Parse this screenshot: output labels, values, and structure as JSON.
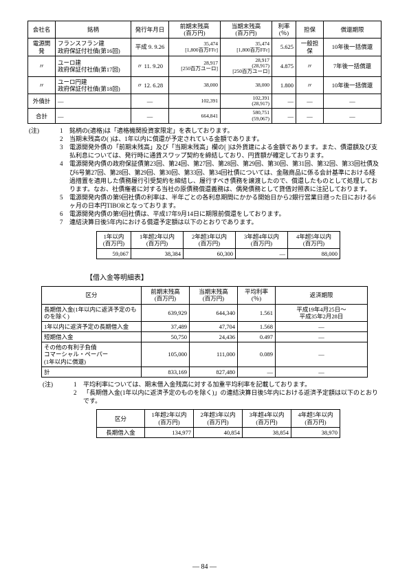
{
  "table1": {
    "headers": [
      "会社名",
      "銘柄",
      "発行年月日",
      "前期末残高\n(百万円)",
      "当期末残高\n(百万円)",
      "利率\n(％)",
      "担保",
      "償還期限"
    ],
    "rows": [
      {
        "c": [
          "電源開発",
          "フランスフラン建\n政府保証付社債(第16回)",
          "平成 9. 9.26",
          "35,474\n[1,800百万FFr]",
          "35,474\n[1,800百万FFr]",
          "5.625",
          "一般担保",
          "10年後一括償還"
        ]
      },
      {
        "c": [
          "〃",
          "ユーロ建\n政府保証付社債(第17回)",
          "〃 11. 9.20",
          "28,917\n[250百万ユーロ]",
          "28,917\n(28,917)\n[250百万ユーロ]",
          "4.875",
          "〃",
          "7年後一括償還"
        ]
      },
      {
        "c": [
          "〃",
          "ユーロ円建\n政府保証付社債(第18回)",
          "〃 12. 6.28",
          "38,000",
          "38,000",
          "1.800",
          "〃",
          "10年後一括償還"
        ]
      },
      {
        "c": [
          "外債計",
          "―",
          "―",
          "102,391",
          "102,391\n(28,917)",
          "―",
          "―",
          "―"
        ]
      },
      {
        "c": [
          "合計",
          "―",
          "―",
          "664,841",
          "580,751\n(59,067)",
          "―",
          "―",
          "―"
        ]
      }
    ]
  },
  "notes1": {
    "label": "(注)",
    "items": [
      {
        "n": "1",
        "t": "銘柄の(適格)は「適格機関投資家限定」を表しております。"
      },
      {
        "n": "2",
        "t": "当期末残高の( )は、1年以内に償還が予定されている金額であります。"
      },
      {
        "n": "3",
        "t": "電源開発外債の「前期末残高」及び「当期末残高」欄の[ ]は外貨建による金額であります。また、債還額及び支払利息については、発行時に通貨スワップ契約を締結しており、円貨額が確定しております。"
      },
      {
        "n": "4",
        "t": "電源開発内債の政府保証債第23回、第24回、第27回、第28回、第29回、第30回、第31回、第32回、第33回社債及び6号第27回、第28回、第29回、第30回、第33回、第34回社債については、金融商品に係る会計基準における経過措置を適用した債務履行引受契約を締結し、履行すべき債務を譲渡したので、償還したものとして処理しております。なお、社債権者に対する当社の原債務償還義務は、偶発債務として貸借対照表に注記しております。"
      },
      {
        "n": "5",
        "t": "電源開発内債の第9回社債の利率は、半年ごとの各利息期間にかかる開始日から2銀行営業日遡った日における6ヶ月の日本円TIBORとなっております。"
      },
      {
        "n": "6",
        "t": "電源開発内債の第9回社債は、平成17年9月14日に期限前償還をしております。"
      },
      {
        "n": "7",
        "t": "連結決算日後5年内における償還予定額は以下のとおりであります。"
      }
    ]
  },
  "table2": {
    "headers": [
      "1年以内\n(百万円)",
      "1年超2年以内\n(百万円)",
      "2年超3年以内\n(百万円)",
      "3年超4年以内\n(百万円)",
      "4年超5年以内\n(百万円)"
    ],
    "row": [
      "59,067",
      "38,384",
      "60,300",
      "―",
      "88,000"
    ]
  },
  "section_title": "【借入金等明細表】",
  "table3": {
    "headers": [
      "区分",
      "前期末残高\n(百万円)",
      "当期末残高\n(百万円)",
      "平均利率\n(％)",
      "返済期限"
    ],
    "rows": [
      [
        "長期借入金(1年以内に返済予定のものを除く)",
        "639,929",
        "644,340",
        "1.561",
        "平成19年4月25日～\n平成35年2月28日"
      ],
      [
        "1年以内に返済予定の長期借入金",
        "37,489",
        "47,704",
        "1.568",
        "―"
      ],
      [
        "短期借入金",
        "50,750",
        "24,436",
        "0.497",
        "―"
      ],
      [
        "その他の有利子負債\n  コマーシャル・ペーパー\n  (1年以内に償還)",
        "105,000",
        "111,000",
        "0.089",
        "―"
      ],
      [
        "計",
        "833,169",
        "827,480",
        "―",
        "―"
      ]
    ]
  },
  "notes2": {
    "label": "(注)",
    "items": [
      {
        "n": "1",
        "t": "平均利率については、期末借入金残高に対する加重平均利率を記載しております。"
      },
      {
        "n": "2",
        "t": "「長期借入金(1年以内に返済予定のものを除く)」の連結決算日後5年内における返済予定額は以下のとおりです。"
      }
    ]
  },
  "table4": {
    "headers": [
      "区分",
      "1年超2年以内\n(百万円)",
      "2年超3年以内\n(百万円)",
      "3年超4年以内\n(百万円)",
      "4年超5年以内\n(百万円)"
    ],
    "row": [
      "長期借入金",
      "134,977",
      "40,854",
      "38,854",
      "38,970"
    ]
  },
  "page": "― 84 ―"
}
